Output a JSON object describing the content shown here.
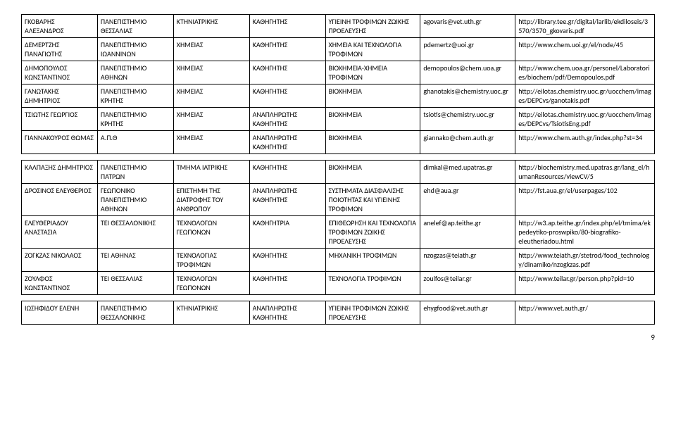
{
  "page_number": "9",
  "tables": [
    {
      "rows": [
        {
          "name": "ΓΚΟΒΑΡΗΣ ΑΛΕΞΑΝΔΡΟΣ",
          "inst": "ΠΑΝΕΠΙΣΤΗΜΙΟ ΘΕΣΣΑΛΙΑΣ",
          "dept": "ΚΤΗΝΙΑΤΡΙΚΗΣ",
          "pos": "ΚΑΘΗΓΗΤΗΣ",
          "spec": "ΥΓΙΕΙΝΗ ΤΡΟΦΙΜΩΝ ΖΩΙΚΗΣ ΠΡΟΕΛΕΥΣΗΣ",
          "email": "agovaris@vet.uth.gr",
          "url": "http://library.tee.gr/digital/larlib/ekdiloseis/3570/3570_gkovaris.pdf"
        },
        {
          "name": "ΔΕΜΕΡΤΖΗΣ ΠΑΝΑΓΙΩΤΗΣ",
          "inst": "ΠΑΝΕΠΙΣΤΗΜΙΟ ΙΩΑΝΝΙΝΩΝ",
          "dept": "ΧΗΜΕΙΑΣ",
          "pos": "ΚΑΘΗΓΗΤΗΣ",
          "spec": "ΧΗΜΕΙΑ ΚΑΙ ΤΕΧΝΟΛΟΓΙΑ ΤΡΟΦΙΜΩΝ",
          "email": "pdemertz@uoi.gr",
          "url": "http://www.chem.uoi.gr/el/node/45"
        },
        {
          "name": "ΔΗΜΟΠΟΥΛΟΣ ΚΩΝΣΤΑΝΤΙΝΟΣ",
          "inst": "ΠΑΝΕΠΙΣΤΗΜΙΟ ΑΘΗΝΩΝ",
          "dept": "ΧΗΜΕΙΑΣ",
          "pos": "ΚΑΘΗΓΗΤΗΣ",
          "spec": "ΒΙΟΧΗΜΕΙΑ-ΧΗΜΕΙΑ ΤΡΟΦΙΜΩΝ",
          "email": "demopoulos@chem.uoa.gr",
          "url": "http://www.chem.uoa.gr/personel/Laboratories/biochem/pdf/Demopoulos.pdf"
        },
        {
          "name": "ΓΑΝΩΤΑΚΗΣ ΔΗΜΗΤΡΙΟΣ",
          "inst": "ΠΑΝΕΠΙΣΤΗΜΙΟ ΚΡΗΤΗΣ",
          "dept": "ΧΗΜΕΙΑΣ",
          "pos": "ΚΑΘΗΓΗΤΗΣ",
          "spec": "ΒΙΟΧΗΜΕΙΑ",
          "email": "ghanotakis@chemistry.uoc.gr",
          "url": "http://eilotas.chemistry.uoc.gr/uocchem/images/DEPCvs/ganotakis.pdf"
        },
        {
          "name": "ΤΣΙΩΤΗΣ ΓΕΩΡΓΙΟΣ",
          "inst": "ΠΑΝΕΠΙΣΤΗΜΙΟ ΚΡΗΤΗΣ",
          "dept": "ΧΗΜΕΙΑΣ",
          "pos": "ΑΝΑΠΛΗΡΩΤΗΣ ΚΑΘΗΓΗΤΗΣ",
          "spec": "ΒΙΟΧΗΜΕΙΑ",
          "email": "tsiotis@chemistry.uoc.gr",
          "url": "http://eilotas.chemistry.uoc.gr/uocchem/images/DEPCvs/TsiotisEng.pdf"
        },
        {
          "name": "ΓΙΑΝΝΑΚΟΥΡΟΣ ΘΩΜΑΣ",
          "inst": "Α.Π.Θ",
          "dept": "ΧΗΜΕΙΑΣ",
          "pos": "ΑΝΑΠΛΗΡΩΤΗΣ ΚΑΘΗΓΗΤΗΣ",
          "spec": "ΒΙΟΧΗΜΕΙΑ",
          "email": "giannako@chem.auth.gr",
          "url": "http://www.chem.auth.gr/index.php?st=34"
        }
      ]
    },
    {
      "rows": [
        {
          "name": "ΚΑΛΠΑΞΗΣ ΔΗΜΗΤΡΙΟΣ",
          "inst": "ΠΑΝΕΠΙΣΤΗΜΙΟ ΠΑΤΡΩΝ",
          "dept": "ΤΜΗΜΑ ΙΑΤΡΙΚΗΣ",
          "pos": "ΚΑΘΗΓΗΤΗΣ",
          "spec": "ΒΙΟΧΗΜΕΙΑ",
          "email": "dimkal@med.upatras.gr",
          "url": "http://biochemistry.med.upatras.gr/lang_el/humanResources/viewCV/5"
        },
        {
          "name": "ΔΡΟΣΙΝΟΣ ΕΛΕΥΘΕΡΙΟΣ",
          "inst": "ΓΕΩΠΟΝΙΚΟ ΠΑΝΕΠΙΣΤΗΜΙΟ ΑΘΗΝΩΝ",
          "dept": "ΕΠΙΣΤΗΜΗ ΤΗΣ ΔΙΑΤΡΟΦΗΣ ΤΟΥ ΑΝΘΡΩΠΟΥ",
          "pos": "ΑΝΑΠΛΗΡΩΤΗΣ ΚΑΘΗΓΗΤΗΣ",
          "spec": "ΣΥΣΤΗΜΑΤΑ ΔΙΑΣΦΑΛΙΣΗΣ ΠΟΙΟΤΗΤΑΣ ΚΑΙ ΥΓΙΕΙΝΗΣ ΤΡΟΦΙΜΩΝ",
          "email": "ehd@aua.gr",
          "url": "http://fst.aua.gr/el/userpages/102"
        },
        {
          "name": "ΕΛΕΥΘΕΡΙΑΔΟΥ ΑΝΑΣΤΑΣΙΑ",
          "inst": "ΤΕΙ ΘΕΣΣΑΛΟΝΙΚΗΣ",
          "dept": "ΤΕΧΝΟΛΟΓΩΝ ΓΕΩΠΟΝΩΝ",
          "pos": "ΚΑΘΗΓΗΤΡΙΑ",
          "spec": "ΕΠΙΘΕΩΡΗΣΗ ΚΑΙ ΤΕΧΝΟΛΟΓΙΑ ΤΡΟΦΙΜΩΝ ΖΩΙΚΗΣ ΠΡΟΕΛΕΥΣΗΣ",
          "email": "anelef@ap.teithe.gr",
          "url": "http://w3.ap.teithe.gr/index.php/el/tmima/ekpedeytiko-proswpiko/80-biografiko-eleutheriadou.html"
        },
        {
          "name": "ΖΟΓΚΖΑΣ ΝΙΚΟΛΑΟΣ",
          "inst": "ΤΕΙ ΑΘΗΝΑΣ",
          "dept": "ΤΕΧΝΟΛΟΓΙΑΣ ΤΡΟΦΙΜΩΝ",
          "pos": "ΚΑΘΗΓΗΤΗΣ",
          "spec": "ΜΗΧΑΝΙΚΗ ΤΡΟΦΙΜΩΝ",
          "email": "nzogzas@teiath.gr",
          "url": "http://www.teiath.gr/stetrod/food_technology/dinamiko/nzogkzas.pdf"
        },
        {
          "name": "ΖΟΥΛΦΟΣ ΚΩΝΣΤΑΝΤΙΝΟΣ",
          "inst": "ΤΕΙ ΘΕΣΣΑΛΙΑΣ",
          "dept": "ΤΕΧΝΟΛΟΓΩΝ ΓΕΩΠΟΝΩΝ",
          "pos": "ΚΑΘΗΓΗΤΗΣ",
          "spec": "ΤΕΧΝΟΛΟΓΙΑ ΤΡΟΦΙΜΩΝ",
          "email": "zoulfos@teilar.gr",
          "url": "http://www.teilar.gr/person.php?pid=10"
        }
      ]
    },
    {
      "rows": [
        {
          "name": "ΙΩΣΗΦΙΔΟΥ ΕΛΕΝΗ",
          "inst": "ΠΑΝΕΠΙΣΤΗΜΙΟ ΘΕΣΣΑΛΟΝΙΚΗΣ",
          "dept": "ΚΤΗΝΙΑΤΡΙΚΗΣ",
          "pos": "ΑΝΑΠΛΗΡΩΤΗΣ ΚΑΘΗΓΗΤΗΣ",
          "spec": "ΥΓΙΕΙΝΗ ΤΡΟΦΙΜΩΝ ΖΩΙΚΗΣ ΠΡΟΕΛΕΥΣΗΣ",
          "email": "ehygfood@vet.auth.gr",
          "url": "http://www.vet.auth.gr/"
        }
      ]
    }
  ]
}
